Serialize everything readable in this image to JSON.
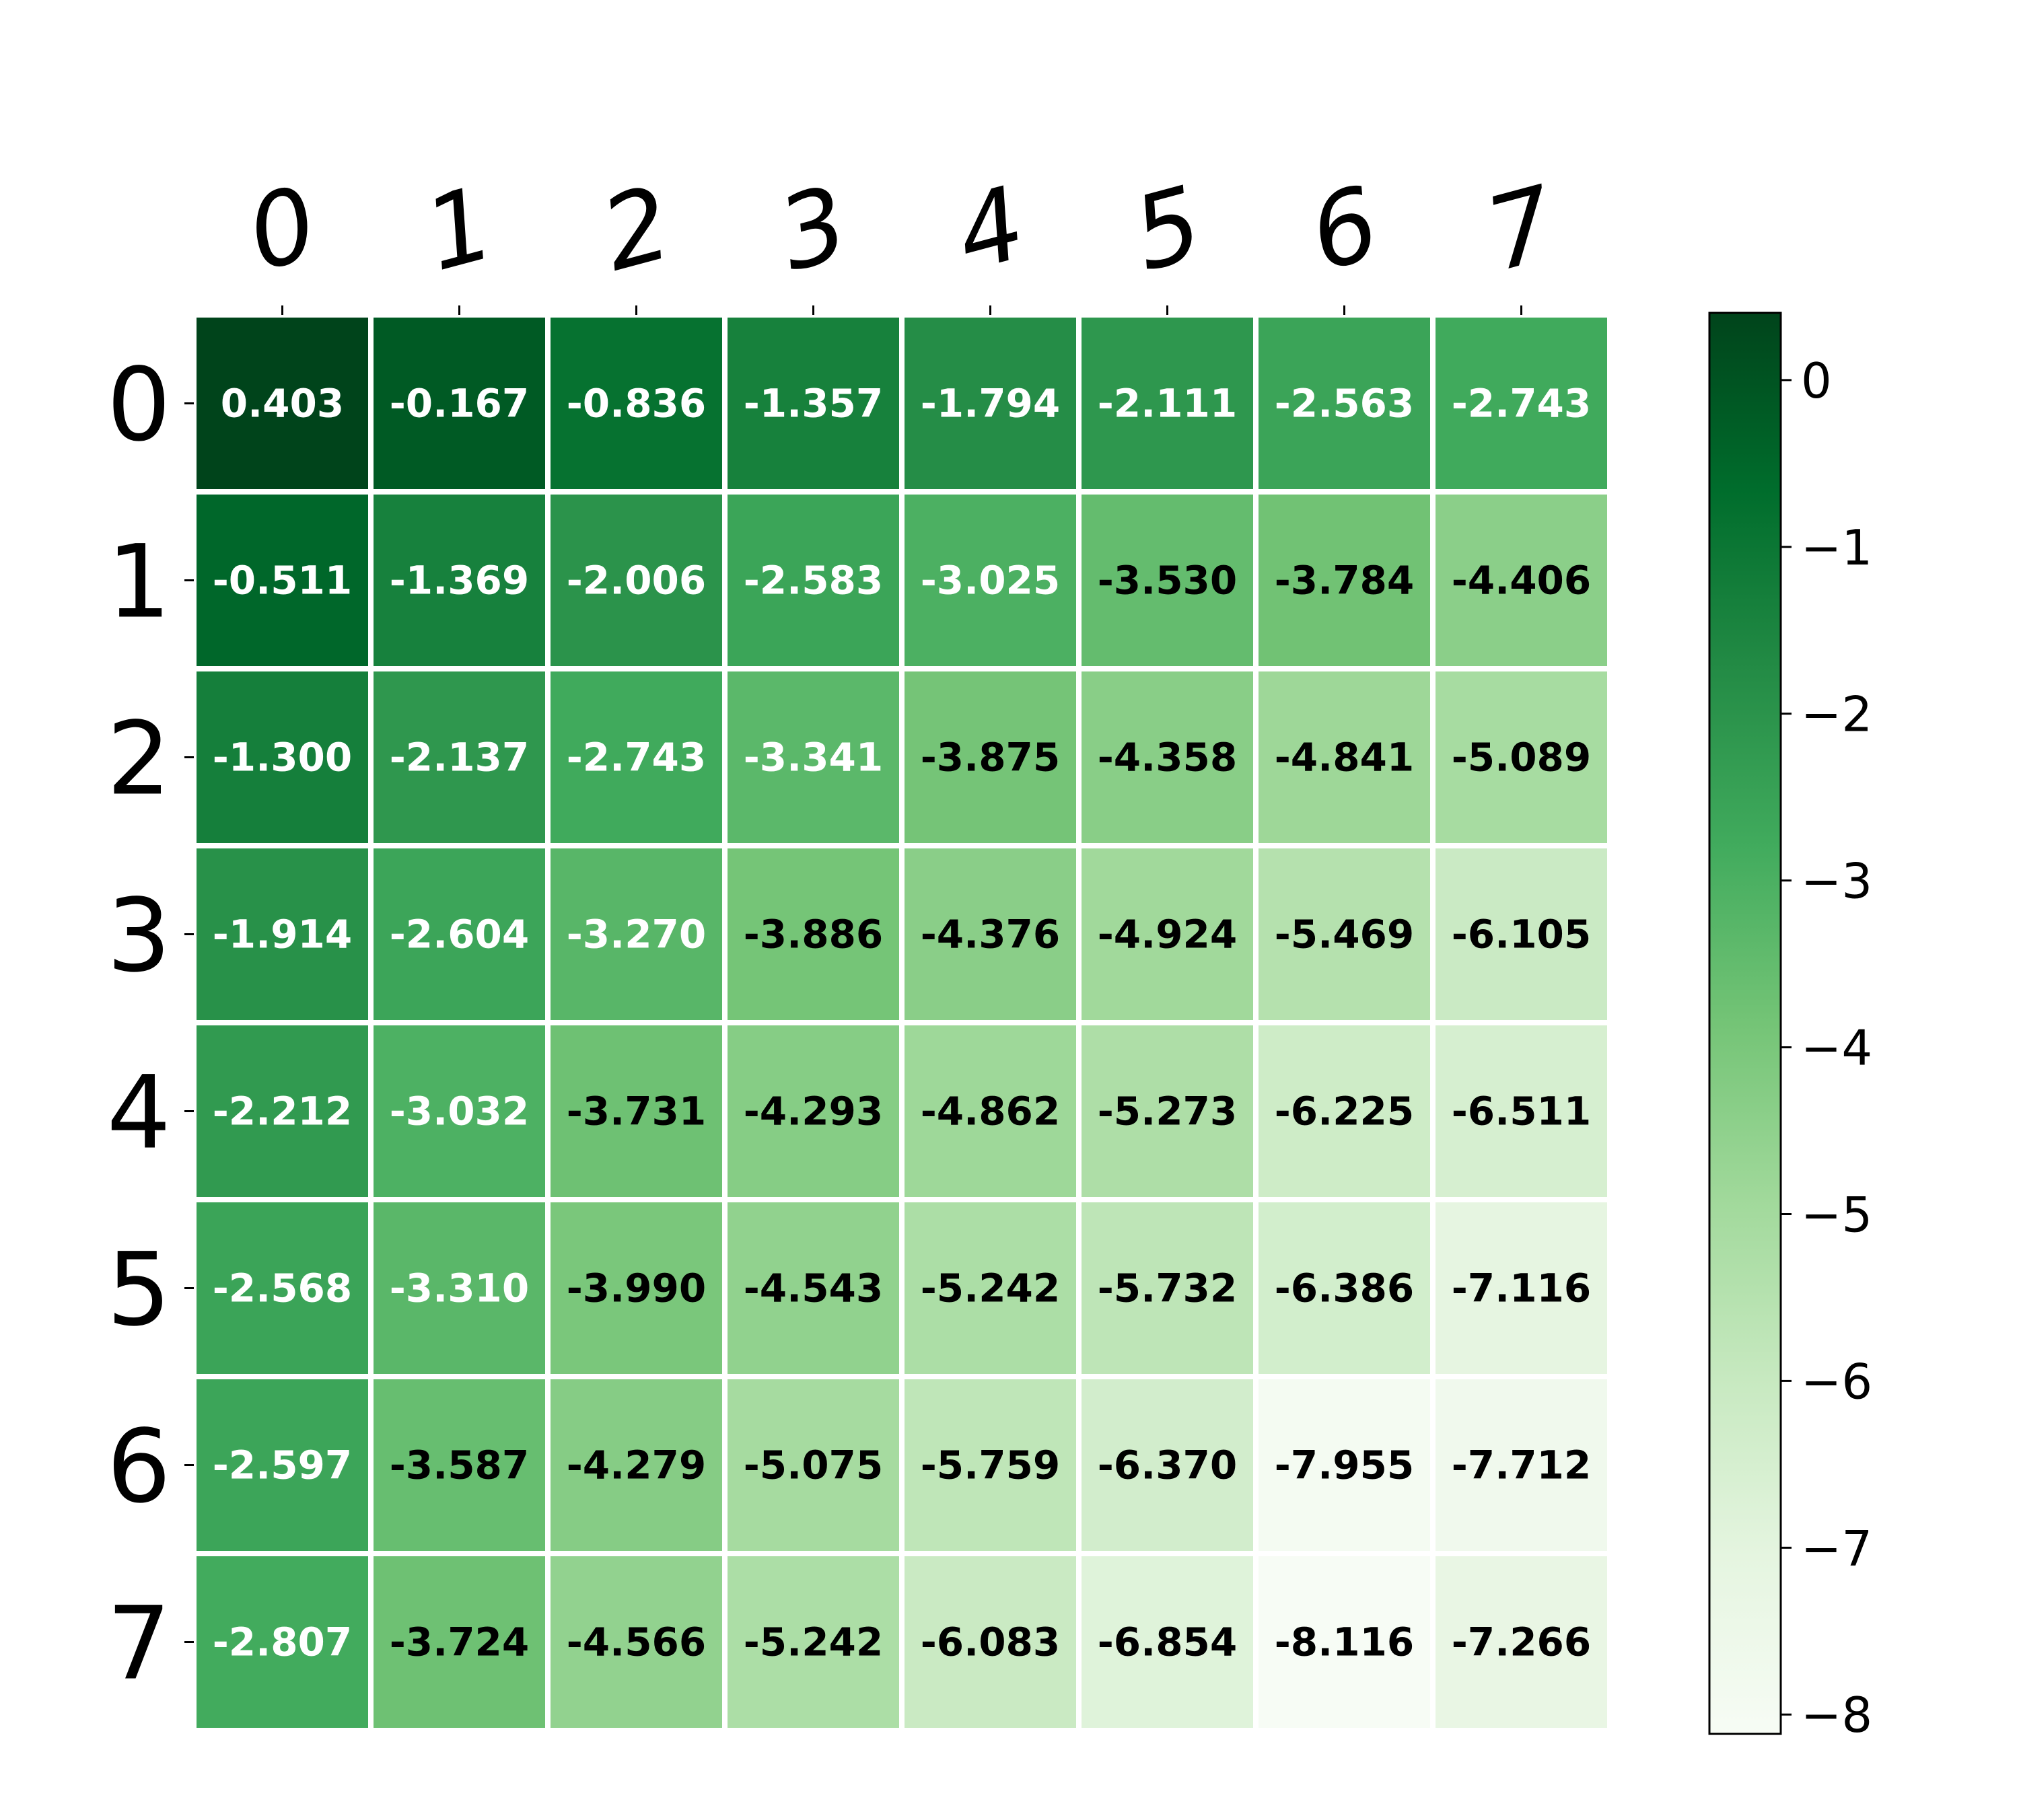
{
  "chart_data": {
    "type": "heatmap",
    "title": "",
    "xlabel": "",
    "ylabel": "",
    "x_tick_labels": [
      "0",
      "1",
      "2",
      "3",
      "4",
      "5",
      "6",
      "7"
    ],
    "y_tick_labels": [
      "0",
      "1",
      "2",
      "3",
      "4",
      "5",
      "6",
      "7"
    ],
    "values": [
      [
        0.403,
        -0.167,
        -0.836,
        -1.357,
        -1.794,
        -2.111,
        -2.563,
        -2.743
      ],
      [
        -0.511,
        -1.369,
        -2.006,
        -2.583,
        -3.025,
        -3.53,
        -3.784,
        -4.406
      ],
      [
        -1.3,
        -2.137,
        -2.743,
        -3.341,
        -3.875,
        -4.358,
        -4.841,
        -5.089
      ],
      [
        -1.914,
        -2.604,
        -3.27,
        -3.886,
        -4.376,
        -4.924,
        -5.469,
        -6.105
      ],
      [
        -2.212,
        -3.032,
        -3.731,
        -4.293,
        -4.862,
        -5.273,
        -6.225,
        -6.511
      ],
      [
        -2.568,
        -3.31,
        -3.99,
        -4.543,
        -5.242,
        -5.732,
        -6.386,
        -7.116
      ],
      [
        -2.597,
        -3.587,
        -4.279,
        -5.075,
        -5.759,
        -6.37,
        -7.955,
        -7.712
      ],
      [
        -2.807,
        -3.724,
        -4.566,
        -5.242,
        -6.083,
        -6.854,
        -8.116,
        -7.266
      ]
    ],
    "value_labels": [
      [
        "0.403",
        "-0.167",
        "-0.836",
        "-1.357",
        "-1.794",
        "-2.111",
        "-2.563",
        "-2.743"
      ],
      [
        "-0.511",
        "-1.369",
        "-2.006",
        "-2.583",
        "-3.025",
        "-3.530",
        "-3.784",
        "-4.406"
      ],
      [
        "-1.300",
        "-2.137",
        "-2.743",
        "-3.341",
        "-3.875",
        "-4.358",
        "-4.841",
        "-5.089"
      ],
      [
        "-1.914",
        "-2.604",
        "-3.270",
        "-3.886",
        "-4.376",
        "-4.924",
        "-5.469",
        "-6.105"
      ],
      [
        "-2.212",
        "-3.032",
        "-3.731",
        "-4.293",
        "-4.862",
        "-5.273",
        "-6.225",
        "-6.511"
      ],
      [
        "-2.568",
        "-3.310",
        "-3.990",
        "-4.543",
        "-5.242",
        "-5.732",
        "-6.386",
        "-7.116"
      ],
      [
        "-2.597",
        "-3.587",
        "-4.279",
        "-5.075",
        "-5.759",
        "-6.370",
        "-7.955",
        "-7.712"
      ],
      [
        "-2.807",
        "-3.724",
        "-4.566",
        "-5.242",
        "-6.083",
        "-6.854",
        "-8.116",
        "-7.266"
      ]
    ],
    "colormap": "Greens",
    "color_range": [
      -8.116,
      0.403
    ],
    "colorbar": {
      "ticks": [
        0,
        -1,
        -2,
        -3,
        -4,
        -5,
        -6,
        -7,
        -8
      ],
      "tick_labels": [
        "0",
        "−1",
        "−2",
        "−3",
        "−4",
        "−5",
        "−6",
        "−7",
        "−8"
      ],
      "placement": "right"
    },
    "x_axis_placement": "top",
    "grid": false,
    "text_colors": {
      "dark_cell_text": "#ffffff",
      "light_cell_text": "#000000"
    },
    "cell_border_color": "#ffffff"
  }
}
